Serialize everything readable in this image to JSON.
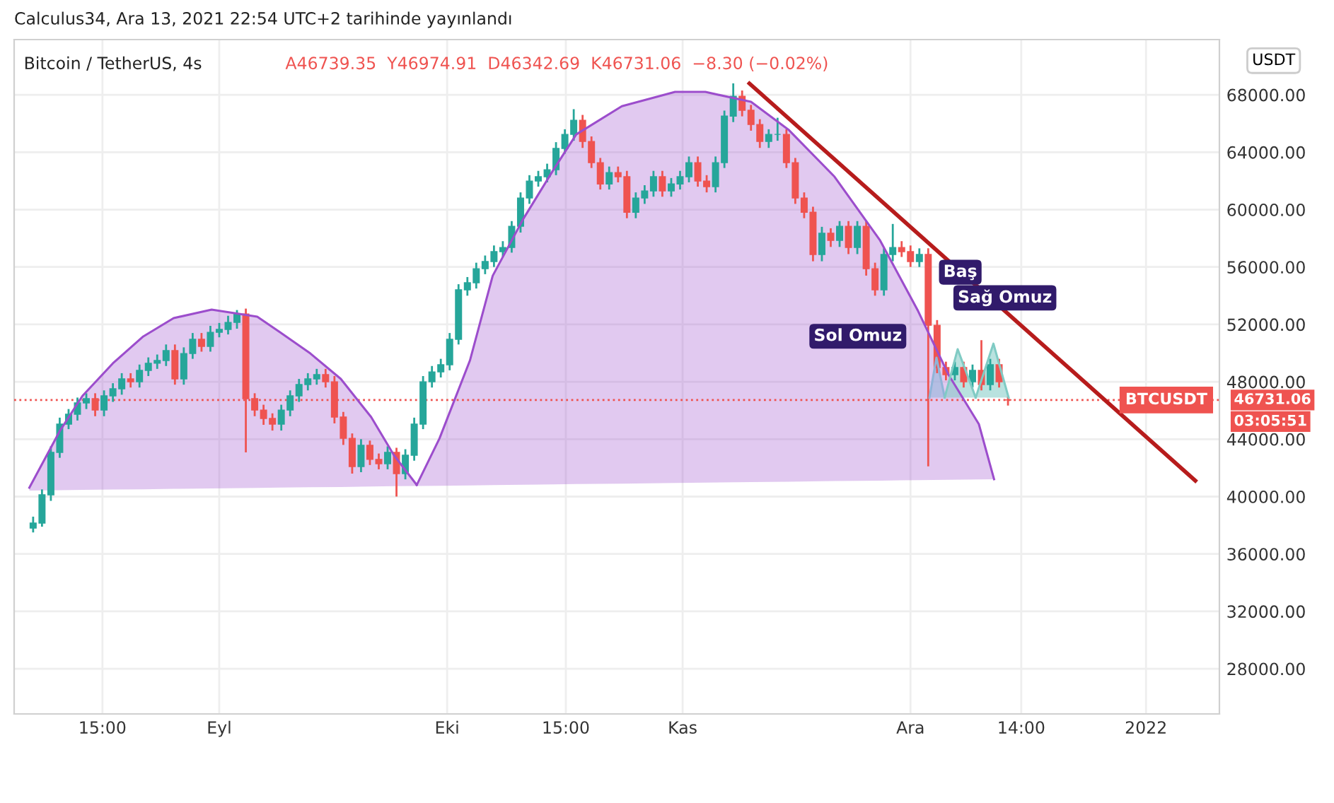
{
  "chart_data": {
    "type": "candlestick",
    "title": "Bitcoin / TetherUS, 4s",
    "subtitle": "A46739.35  Y46974.91  D46342.69  K46731.06  −8.30 (−0.02%)",
    "annotations": [
      "Calculus34, Ara 13, 2021 22:54 UTC+2 tarihinde yayınlandı",
      "USDT",
      "46731.06",
      "03:05:51",
      "Baş",
      "Sağ Omuz",
      "Sol Omuz"
    ],
    "colors": [
      "#26a69a",
      "#26a69a",
      "#26a69a",
      "#26a69a",
      "#26a69a",
      "#26a69a",
      "#26a69a",
      "#ef5350",
      "#26a69a",
      "#26a69a",
      "#26a69a",
      "#ef5350",
      "#26a69a",
      "#26a69a",
      "#26a69a",
      "#26a69a",
      "#ef5350",
      "#26a69a",
      "#26a69a",
      "#ef5350",
      "#26a69a",
      "#26a69a",
      "#26a69a",
      "#26a69a",
      "#ef5350",
      "#ef5350",
      "#ef5350",
      "#ef5350",
      "#26a69a",
      "#26a69a",
      "#26a69a",
      "#26a69a",
      "#26a69a",
      "#ef5350",
      "#ef5350",
      "#ef5350",
      "#ef5350",
      "#26a69a",
      "#ef5350",
      "#ef5350",
      "#26a69a",
      "#ef5350",
      "#26a69a",
      "#26a69a",
      "#26a69a",
      "#26a69a",
      "#26a69a",
      "#26a69a",
      "#26a69a",
      "#26a69a",
      "#26a69a",
      "#26a69a",
      "#26a69a",
      "#26a69a",
      "#26a69a",
      "#26a69a",
      "#26a69a",
      "#26a69a",
      "#26a69a",
      "#26a69a",
      "#26a69a",
      "#26a69a",
      "#ef5350",
      "#ef5350",
      "#ef5350",
      "#26a69a",
      "#ef5350",
      "#ef5350",
      "#26a69a",
      "#26a69a",
      "#26a69a",
      "#ef5350",
      "#26a69a",
      "#26a69a",
      "#26a69a",
      "#ef5350",
      "#ef5350",
      "#26a69a",
      "#26a69a",
      "#26a69a",
      "#ef5350",
      "#ef5350",
      "#ef5350",
      "#26a69a",
      "#26a69a",
      "#ef5350",
      "#ef5350",
      "#ef5350",
      "#ef5350",
      "#26a69a",
      "#ef5350",
      "#26a69a",
      "#ef5350",
      "#26a69a",
      "#ef5350",
      "#ef5350",
      "#26a69a",
      "#26a69a",
      "#ef5350",
      "#ef5350",
      "#26a69a",
      "#ef5350",
      "#ef5350",
      "#ef5350",
      "#26a69a",
      "#ef5350",
      "#26a69a",
      "#ef5350",
      "#26a69a",
      "#ef5350",
      "#ef5350"
    ],
    "x": [
      "2021-08-07T12:00",
      "2021-08-08T16:00",
      "2021-08-09T20:00",
      "2021-08-11T00:00",
      "2021-08-12T04:00",
      "2021-08-13T08:00",
      "2021-08-14T12:00",
      "2021-08-15T16:00",
      "2021-08-16T20:00",
      "2021-08-18T00:00",
      "2021-08-19T04:00",
      "2021-08-20T08:00",
      "2021-08-21T12:00",
      "2021-08-22T16:00",
      "2021-08-23T20:00",
      "2021-08-25T00:00",
      "2021-08-26T04:00",
      "2021-08-27T08:00",
      "2021-08-28T12:00",
      "2021-08-29T16:00",
      "2021-08-30T20:00",
      "2021-09-01T00:00",
      "2021-09-02T04:00",
      "2021-09-03T08:00",
      "2021-09-04T12:00",
      "2021-09-05T16:00",
      "2021-09-06T20:00",
      "2021-09-08T00:00",
      "2021-09-09T04:00",
      "2021-09-10T08:00",
      "2021-09-11T12:00",
      "2021-09-12T16:00",
      "2021-09-13T20:00",
      "2021-09-15T00:00",
      "2021-09-16T04:00",
      "2021-09-17T08:00",
      "2021-09-18T12:00",
      "2021-09-19T16:00",
      "2021-09-20T20:00",
      "2021-09-22T00:00",
      "2021-09-23T04:00",
      "2021-09-24T08:00",
      "2021-09-25T12:00",
      "2021-09-26T16:00",
      "2021-09-27T20:00",
      "2021-09-29T00:00",
      "2021-09-30T04:00",
      "2021-10-01T08:00",
      "2021-10-02T12:00",
      "2021-10-03T16:00",
      "2021-10-04T20:00",
      "2021-10-06T00:00",
      "2021-10-07T04:00",
      "2021-10-08T08:00",
      "2021-10-09T12:00",
      "2021-10-10T16:00",
      "2021-10-11T20:00",
      "2021-10-13T00:00",
      "2021-10-14T04:00",
      "2021-10-15T08:00",
      "2021-10-16T12:00",
      "2021-10-17T16:00",
      "2021-10-18T20:00",
      "2021-10-20T00:00",
      "2021-10-21T04:00",
      "2021-10-22T08:00",
      "2021-10-23T12:00",
      "2021-10-24T16:00",
      "2021-10-25T20:00",
      "2021-10-27T00:00",
      "2021-10-28T04:00",
      "2021-10-29T08:00",
      "2021-10-30T12:00",
      "2021-10-31T16:00",
      "2021-11-01T20:00",
      "2021-11-03T00:00",
      "2021-11-04T04:00",
      "2021-11-05T08:00",
      "2021-11-06T12:00",
      "2021-11-07T16:00",
      "2021-11-08T20:00",
      "2021-11-10T00:00",
      "2021-11-11T04:00",
      "2021-11-12T08:00",
      "2021-11-13T12:00",
      "2021-11-14T16:00",
      "2021-11-15T20:00",
      "2021-11-17T00:00",
      "2021-11-18T04:00",
      "2021-11-19T08:00",
      "2021-11-20T12:00",
      "2021-11-21T16:00",
      "2021-11-22T20:00",
      "2021-11-24T00:00",
      "2021-11-25T04:00",
      "2021-11-26T08:00",
      "2021-11-27T12:00",
      "2021-11-28T16:00",
      "2021-11-29T20:00",
      "2021-12-01T00:00",
      "2021-12-02T04:00",
      "2021-12-03T08:00",
      "2021-12-04T12:00",
      "2021-12-05T16:00",
      "2021-12-06T20:00",
      "2021-12-08T00:00",
      "2021-12-09T04:00",
      "2021-12-10T08:00",
      "2021-12-11T12:00",
      "2021-12-12T16:00",
      "2021-12-13T20:00"
    ],
    "ohlc": [
      [
        37800,
        38600,
        37500,
        38150
      ],
      [
        38150,
        40500,
        37900,
        40120
      ],
      [
        40120,
        43500,
        39700,
        43080
      ],
      [
        43080,
        45500,
        42700,
        45050
      ],
      [
        45050,
        46100,
        44700,
        45740
      ],
      [
        45740,
        46900,
        45300,
        46530
      ],
      [
        46530,
        47200,
        46100,
        46820
      ],
      [
        46820,
        47200,
        45600,
        46030
      ],
      [
        46030,
        47400,
        45600,
        47020
      ],
      [
        47020,
        47900,
        46600,
        47510
      ],
      [
        47510,
        48600,
        47100,
        48200
      ],
      [
        48200,
        48600,
        47600,
        48000
      ],
      [
        48000,
        49200,
        47600,
        48790
      ],
      [
        48790,
        49700,
        48400,
        49290
      ],
      [
        49290,
        49900,
        48900,
        49480
      ],
      [
        49480,
        50600,
        49100,
        50170
      ],
      [
        50170,
        50600,
        47800,
        48200
      ],
      [
        48200,
        50400,
        47800,
        49970
      ],
      [
        49970,
        51400,
        49600,
        50960
      ],
      [
        50960,
        51400,
        50100,
        50470
      ],
      [
        50470,
        51900,
        50100,
        51450
      ],
      [
        51450,
        52100,
        51100,
        51650
      ],
      [
        51650,
        52600,
        51300,
        52140
      ],
      [
        52140,
        53000,
        51700,
        52730
      ],
      [
        52730,
        53100,
        43080,
        46820
      ],
      [
        46820,
        47200,
        45600,
        46030
      ],
      [
        46030,
        46400,
        45000,
        45440
      ],
      [
        45440,
        45800,
        44600,
        45050
      ],
      [
        45050,
        46400,
        44600,
        46030
      ],
      [
        46030,
        47400,
        45600,
        47020
      ],
      [
        47020,
        48200,
        46600,
        47810
      ],
      [
        47810,
        48600,
        47400,
        48200
      ],
      [
        48200,
        48900,
        47800,
        48500
      ],
      [
        48500,
        48900,
        47600,
        48000
      ],
      [
        48000,
        48400,
        45100,
        45540
      ],
      [
        45540,
        45900,
        43600,
        44060
      ],
      [
        44060,
        44400,
        41600,
        42090
      ],
      [
        42090,
        44000,
        41700,
        43570
      ],
      [
        43570,
        43900,
        42200,
        42590
      ],
      [
        42590,
        43000,
        41900,
        42290
      ],
      [
        42290,
        43500,
        41900,
        43080
      ],
      [
        43080,
        43400,
        40000,
        41600
      ],
      [
        41600,
        43300,
        41200,
        42880
      ],
      [
        42880,
        45500,
        42500,
        45050
      ],
      [
        45050,
        48400,
        44700,
        48000
      ],
      [
        48000,
        49100,
        47600,
        48690
      ],
      [
        48690,
        49600,
        48300,
        49190
      ],
      [
        49190,
        51400,
        48800,
        50960
      ],
      [
        50960,
        54800,
        50600,
        54410
      ],
      [
        54410,
        55300,
        54000,
        54900
      ],
      [
        54900,
        56300,
        54500,
        55880
      ],
      [
        55880,
        56800,
        55500,
        56380
      ],
      [
        56380,
        57500,
        56000,
        57070
      ],
      [
        57070,
        57800,
        56700,
        57360
      ],
      [
        57360,
        59200,
        57000,
        58840
      ],
      [
        58840,
        61200,
        58400,
        60810
      ],
      [
        60810,
        62400,
        60400,
        61990
      ],
      [
        61990,
        62700,
        61600,
        62290
      ],
      [
        62290,
        63200,
        61900,
        62780
      ],
      [
        62780,
        64700,
        62400,
        64260
      ],
      [
        64260,
        65600,
        63900,
        65240
      ],
      [
        65240,
        67000,
        64800,
        66230
      ],
      [
        66230,
        66600,
        64300,
        64750
      ],
      [
        64750,
        65100,
        62900,
        63270
      ],
      [
        63270,
        63600,
        61400,
        61790
      ],
      [
        61790,
        63000,
        61400,
        62580
      ],
      [
        62580,
        63000,
        61900,
        62290
      ],
      [
        62290,
        62700,
        59400,
        59820
      ],
      [
        59820,
        61200,
        59400,
        60810
      ],
      [
        60810,
        61700,
        60400,
        61300
      ],
      [
        61300,
        62700,
        60900,
        62290
      ],
      [
        62290,
        62700,
        60900,
        61300
      ],
      [
        61300,
        62200,
        60900,
        61790
      ],
      [
        61790,
        62700,
        61400,
        62290
      ],
      [
        62290,
        63700,
        61900,
        63270
      ],
      [
        63270,
        63700,
        61600,
        61990
      ],
      [
        61990,
        62400,
        61200,
        61600
      ],
      [
        61600,
        63700,
        61200,
        63270
      ],
      [
        63270,
        66900,
        62900,
        66520
      ],
      [
        66520,
        68800,
        66100,
        67900
      ],
      [
        67900,
        68300,
        66500,
        66920
      ],
      [
        66920,
        67300,
        65500,
        65930
      ],
      [
        65930,
        66300,
        64300,
        64750
      ],
      [
        64750,
        65600,
        64300,
        65240
      ],
      [
        65240,
        66400,
        64800,
        65240
      ],
      [
        65240,
        65600,
        62900,
        63270
      ],
      [
        63270,
        63600,
        60400,
        60810
      ],
      [
        60810,
        61200,
        59400,
        59820
      ],
      [
        59820,
        60200,
        56400,
        56870
      ],
      [
        56870,
        58800,
        56400,
        58350
      ],
      [
        58350,
        58700,
        57400,
        57850
      ],
      [
        57850,
        59200,
        57400,
        58840
      ],
      [
        58840,
        59200,
        56900,
        57360
      ],
      [
        57360,
        59200,
        56900,
        58840
      ],
      [
        58840,
        59200,
        55400,
        55880
      ],
      [
        55880,
        56300,
        54000,
        54410
      ],
      [
        54410,
        57300,
        54000,
        56870
      ],
      [
        56870,
        59000,
        56400,
        57360
      ],
      [
        57360,
        57800,
        56700,
        57070
      ],
      [
        57070,
        57500,
        56000,
        56380
      ],
      [
        56380,
        57300,
        56000,
        56870
      ],
      [
        56870,
        57300,
        42100,
        51940
      ],
      [
        51940,
        52300,
        48600,
        48990
      ],
      [
        48990,
        49400,
        48100,
        48500
      ],
      [
        48500,
        49400,
        48100,
        48990
      ],
      [
        48990,
        49400,
        47600,
        48000
      ],
      [
        48000,
        49200,
        47600,
        48790
      ],
      [
        48790,
        50900,
        47400,
        47810
      ],
      [
        47810,
        49600,
        47400,
        49190
      ],
      [
        49190,
        49600,
        47600,
        48000
      ],
      [
        46739.35,
        46974.91,
        46342.69,
        46731.06
      ]
    ],
    "series": [
      {
        "type": "line",
        "color": "#9c4dcc",
        "upper": [
          40620,
          44560,
          47020,
          49290,
          51160,
          52440,
          53030,
          52540,
          51450,
          49970,
          48200,
          45540,
          42880,
          40810
        ],
        "x": [
          "2021-08-07",
          "2021-08-11",
          "2021-08-14",
          "2021-08-18",
          "2021-08-22",
          "2021-08-26",
          "2021-08-31",
          "2021-09-06",
          "2021-09-09",
          "2021-09-13",
          "2021-09-17",
          "2021-09-21",
          "2021-09-24",
          "2021-09-27"
        ],
        "values": [
          40620,
          44560,
          47020,
          49290,
          51160,
          52440,
          53030,
          52540,
          51450,
          49970,
          48200,
          45540,
          42880,
          40810
        ],
        "lower": [
          40420,
          40440,
          40470,
          40490,
          40510,
          40540,
          40570,
          40600,
          40630,
          40650,
          40670,
          40700,
          40720,
          40740
        ]
      },
      {
        "type": "line",
        "color": "#9c4dcc",
        "upper": [
          40810,
          44060,
          49480,
          55390,
          59330,
          62780,
          65240,
          67210,
          68200,
          68200,
          67510,
          65540,
          62290,
          57850,
          52930,
          48500,
          45050,
          41210
        ],
        "x": [
          "2021-09-27",
          "2021-09-30",
          "2021-10-04",
          "2021-10-07",
          "2021-10-11",
          "2021-10-15",
          "2021-10-18",
          "2021-10-24",
          "2021-10-31",
          "2021-11-04",
          "2021-11-10",
          "2021-11-15",
          "2021-11-21",
          "2021-11-27",
          "2021-12-02",
          "2021-12-06",
          "2021-12-10",
          "2021-12-12"
        ],
        "values": [
          40810,
          44060,
          49480,
          55390,
          59330,
          62780,
          65240,
          67210,
          68200,
          68200,
          67510,
          65540,
          62290,
          57850,
          52930,
          48500,
          45050,
          41210
        ],
        "lower": [
          40740,
          40750,
          40780,
          40800,
          40820,
          40850,
          40870,
          40900,
          40950,
          40970,
          41010,
          41040,
          41080,
          41110,
          41150,
          41170,
          41190,
          41210
        ]
      },
      {
        "type": "line",
        "color": "#90b4d8",
        "x": [
          "2021-12-03T12:00",
          "2021-12-04T10:00",
          "2021-12-05T12:00"
        ],
        "values": [
          46900,
          49680,
          46900
        ],
        "upper": [
          46900,
          49680,
          46900
        ],
        "lower": [
          46900,
          46900,
          46900
        ]
      },
      {
        "type": "line",
        "color": "#80cbc4",
        "x": [
          "2021-12-05T12:00",
          "2021-12-07T05:00",
          "2021-12-09T14:00"
        ],
        "values": [
          46900,
          50270,
          46900
        ],
        "upper": [
          46900,
          50270,
          46900
        ],
        "lower": [
          46900,
          46900,
          46900
        ]
      },
      {
        "type": "line",
        "color": "#80cbc4",
        "x": [
          "2021-12-09T14:00",
          "2021-12-11T22:00",
          "2021-12-13T22:00"
        ],
        "values": [
          46900,
          50660,
          46900
        ],
        "upper": [
          46900,
          50660,
          46900
        ],
        "lower": [
          46900,
          46900,
          46900
        ]
      },
      {
        "type": "line",
        "color": "#b71c1c",
        "x": [
          "2021-11-09T19:00",
          "2022-01-07T12:00"
        ],
        "values": [
          68790,
          41110
        ]
      }
    ],
    "ref_lines": [
      {
        "axis": "y",
        "value": 46731.06,
        "label": "BTCUSDT",
        "color": "#ef5350",
        "line_style": "dotted"
      }
    ],
    "xlim": [
      "2021-08-05",
      "2022-01-10T16:00"
    ],
    "xticks": [
      {
        "value": "2021-08-16T15:00",
        "label": "15:00"
      },
      {
        "value": "2021-09-01",
        "label": "Eyl"
      },
      {
        "value": "2021-10-01",
        "label": "Eki"
      },
      {
        "value": "2021-10-16T15:00",
        "label": "15:00"
      },
      {
        "value": "2021-11-01",
        "label": "Kas"
      },
      {
        "value": "2021-12-01",
        "label": "Ara"
      },
      {
        "value": "2021-12-15T14:00",
        "label": "14:00"
      },
      {
        "value": "2022-01-01",
        "label": "2022"
      }
    ],
    "ylim": [
      24850,
      71850
    ],
    "yticks": [
      {
        "value": 28000,
        "label": "28000.00"
      },
      {
        "value": 32000,
        "label": "32000.00"
      },
      {
        "value": 36000,
        "label": "36000.00"
      },
      {
        "value": 40000,
        "label": "40000.00"
      },
      {
        "value": 44000,
        "label": "44000.00"
      },
      {
        "value": 48000,
        "label": "48000.00"
      },
      {
        "value": 52000,
        "label": "52000.00"
      },
      {
        "value": 56000,
        "label": "56000.00"
      },
      {
        "value": 60000,
        "label": "60000.00"
      },
      {
        "value": 64000,
        "label": "64000.00"
      },
      {
        "value": 68000,
        "label": "68000.00"
      }
    ],
    "grid": true
  }
}
